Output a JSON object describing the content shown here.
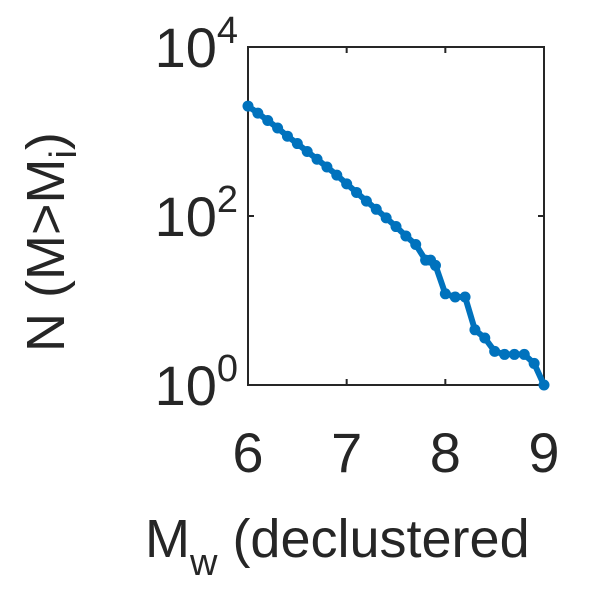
{
  "chart_data": {
    "type": "line",
    "title": "",
    "xlabel_main": "M",
    "xlabel_sub": "w",
    "xlabel_rest": " (declustered",
    "ylabel_main": "N (M>M",
    "ylabel_sub": "i",
    "ylabel_close": ")",
    "xlim": [
      6,
      9
    ],
    "ylim_log10": [
      0,
      4
    ],
    "y_scale": "log",
    "grid": false,
    "xticks": [
      {
        "value": 6,
        "label": "6"
      },
      {
        "value": 7,
        "label": "7"
      },
      {
        "value": 8,
        "label": "8"
      },
      {
        "value": 9,
        "label": "9"
      }
    ],
    "yticks": [
      {
        "value": 1,
        "base": "10",
        "exp": "0"
      },
      {
        "value": 100,
        "base": "10",
        "exp": "2"
      },
      {
        "value": 10000,
        "base": "10",
        "exp": "4"
      }
    ],
    "series": [
      {
        "color": "#0072BD",
        "x": [
          6.0,
          6.1,
          6.2,
          6.3,
          6.4,
          6.5,
          6.6,
          6.7,
          6.8,
          6.9,
          7.0,
          7.1,
          7.2,
          7.3,
          7.4,
          7.5,
          7.6,
          7.7,
          7.8,
          7.85,
          7.9,
          8.0,
          8.1,
          8.2,
          8.3,
          8.4,
          8.5,
          8.6,
          8.7,
          8.8,
          8.9,
          9.0
        ],
        "y": [
          2000,
          1650,
          1350,
          1100,
          880,
          720,
          580,
          470,
          380,
          305,
          240,
          190,
          150,
          120,
          95,
          75,
          58,
          46,
          30,
          30,
          26,
          12,
          11,
          11,
          4.5,
          3.6,
          2.5,
          2.3,
          2.3,
          2.3,
          1.8,
          1
        ]
      }
    ]
  }
}
